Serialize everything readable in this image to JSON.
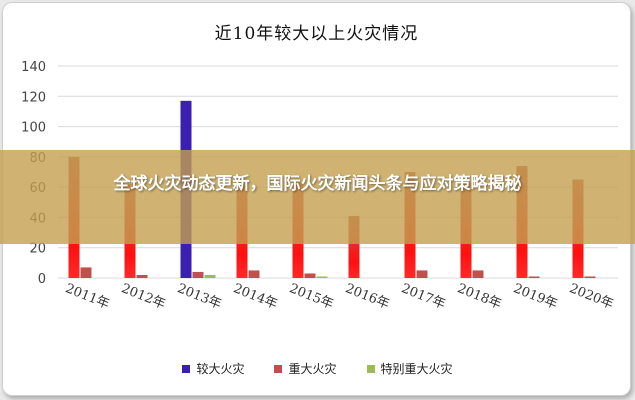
{
  "banner": {
    "headline": "全球火灾动态更新，国际火灾新闻头条与应对策略揭秘"
  },
  "chart_data": {
    "type": "bar",
    "title": "近10年较大以上火灾情况",
    "categories": [
      "2011年",
      "2012年",
      "2013年",
      "2014年",
      "2015年",
      "2016年",
      "2017年",
      "2018年",
      "2019年",
      "2020年"
    ],
    "ylim": [
      0,
      140
    ],
    "yticks": [
      0,
      20,
      40,
      60,
      80,
      100,
      120,
      140
    ],
    "grid": true,
    "legend_position": "bottom",
    "series": [
      {
        "name": "较大火灾",
        "color": "#3a1fb0",
        "values": [
          80,
          62,
          117,
          62,
          63,
          41,
          70,
          63,
          74,
          65
        ]
      },
      {
        "name": "重大火灾",
        "color": "#c0504d",
        "values": [
          7,
          2,
          4,
          5,
          3,
          0,
          5,
          5,
          1,
          1
        ]
      },
      {
        "name": "特别重大火灾",
        "color": "#9bbb59",
        "values": [
          0,
          0,
          2,
          0,
          1,
          0,
          0,
          0,
          0,
          0
        ]
      }
    ]
  }
}
